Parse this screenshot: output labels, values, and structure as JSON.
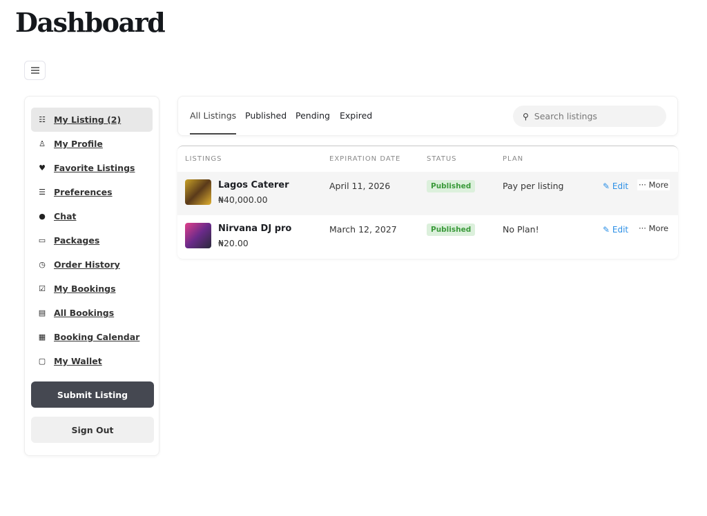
{
  "header": {
    "title": "Dashboard",
    "menu_icon": "hamburger-icon"
  },
  "sidebar": {
    "items": [
      {
        "label": "My Listing (2)",
        "icon": "list-icon",
        "active": true,
        "glyph": "☷"
      },
      {
        "label": "My Profile",
        "icon": "user-icon",
        "glyph": "♙"
      },
      {
        "label": "Favorite Listings",
        "icon": "heart-icon",
        "glyph": "♥"
      },
      {
        "label": "Preferences",
        "icon": "sliders-icon",
        "glyph": "☰"
      },
      {
        "label": "Chat",
        "icon": "chat-bubble-icon",
        "glyph": "●"
      },
      {
        "label": "Packages",
        "icon": "money-icon",
        "glyph": "▭"
      },
      {
        "label": "Order History",
        "icon": "clock-icon",
        "glyph": "◷"
      },
      {
        "label": "My Bookings",
        "icon": "calendar-check-icon",
        "glyph": "☑"
      },
      {
        "label": "All Bookings",
        "icon": "clipboard-icon",
        "glyph": "▤"
      },
      {
        "label": "Booking Calendar",
        "icon": "calendar-icon",
        "glyph": "▦"
      },
      {
        "label": "My Wallet",
        "icon": "wallet-icon",
        "glyph": "▢"
      }
    ],
    "submit_label": "Submit Listing",
    "signout_label": "Sign Out"
  },
  "tabs": [
    {
      "label": "All Listings",
      "active": true
    },
    {
      "label": "Published"
    },
    {
      "label": "Pending"
    },
    {
      "label": "Expired"
    }
  ],
  "search": {
    "placeholder": "Search listings"
  },
  "table": {
    "columns": [
      "LISTINGS",
      "EXPIRATION DATE",
      "STATUS",
      "PLAN"
    ],
    "rows": [
      {
        "name": "Lagos Caterer",
        "price": "₦40,000.00",
        "expiration": "April 11, 2026",
        "status": "Published",
        "plan": "Pay per listing",
        "edit": "Edit",
        "more": "More"
      },
      {
        "name": "Nirvana DJ pro",
        "price": "₦20.00",
        "expiration": "March 12, 2027",
        "status": "Published",
        "plan": "No Plan!",
        "edit": "Edit",
        "more": "More"
      }
    ]
  },
  "colors": {
    "accent": "#2b8fe6",
    "published_bg": "#dcf0dc",
    "published_text": "#3a9a3a",
    "primary_button": "#454851"
  }
}
